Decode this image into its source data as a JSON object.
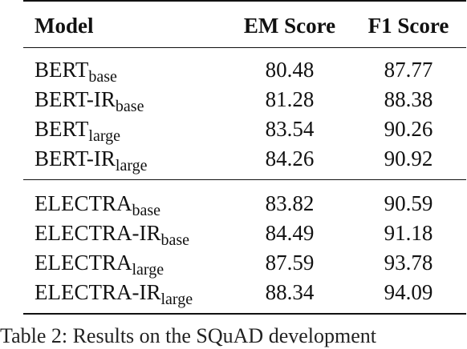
{
  "table": {
    "headers": {
      "model": "Model",
      "em": "EM Score",
      "f1": "F1 Score"
    },
    "groups": [
      {
        "rows": [
          {
            "model": "BERT",
            "sub": "base",
            "em": "80.48",
            "f1": "87.77"
          },
          {
            "model": "BERT-IR",
            "sub": "base",
            "em": "81.28",
            "f1": "88.38"
          },
          {
            "model": "BERT",
            "sub": "large",
            "em": "83.54",
            "f1": "90.26"
          },
          {
            "model": "BERT-IR",
            "sub": "large",
            "em": "84.26",
            "f1": "90.92"
          }
        ]
      },
      {
        "rows": [
          {
            "model": "ELECTRA",
            "sub": "base",
            "em": "83.82",
            "f1": "90.59"
          },
          {
            "model": "ELECTRA-IR",
            "sub": "base",
            "em": "84.49",
            "f1": "91.18"
          },
          {
            "model": "ELECTRA",
            "sub": "large",
            "em": "87.59",
            "f1": "93.78"
          },
          {
            "model": "ELECTRA-IR",
            "sub": "large",
            "em": "88.34",
            "f1": "94.09"
          }
        ]
      }
    ]
  },
  "caption": "Table 2:  Results on the SQuAD development"
}
